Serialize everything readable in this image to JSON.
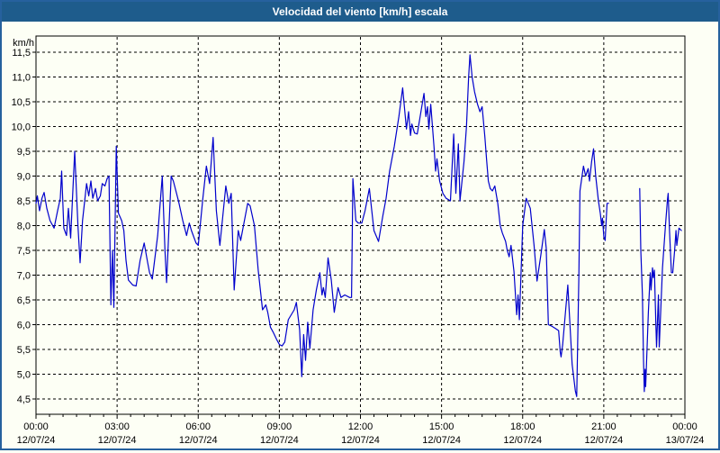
{
  "window": {
    "title": "Velocidad del viento [km/h] escala"
  },
  "colors": {
    "title_bar_bg": "#1E5C8C",
    "title_text": "#FFFFFF",
    "frame_border": "#26619E",
    "background": "#FDFFF5",
    "line": "#0000CC",
    "grid": "#000000",
    "axis": "#000000",
    "label": "#000000"
  },
  "chart_data": {
    "type": "line",
    "title": "Velocidad del viento [km/h] escala",
    "ylabel": "km/h",
    "xlabel": "",
    "ylim": [
      4.5,
      11.5
    ],
    "xlim_hours": [
      0,
      24
    ],
    "grid": "dashed",
    "legend_position": "none",
    "decimal_separator": ",",
    "y_ticks": [
      {
        "value": 11.5,
        "label": "11,5"
      },
      {
        "value": 11.0,
        "label": "11,0"
      },
      {
        "value": 10.5,
        "label": "10,5"
      },
      {
        "value": 10.0,
        "label": "10,0"
      },
      {
        "value": 9.5,
        "label": "9,5"
      },
      {
        "value": 9.0,
        "label": "9,0"
      },
      {
        "value": 8.5,
        "label": "8,5"
      },
      {
        "value": 8.0,
        "label": "8,0"
      },
      {
        "value": 7.5,
        "label": "7,5"
      },
      {
        "value": 7.0,
        "label": "7,0"
      },
      {
        "value": 6.5,
        "label": "6,5"
      },
      {
        "value": 6.0,
        "label": "6,0"
      },
      {
        "value": 5.5,
        "label": "5,5"
      },
      {
        "value": 5.0,
        "label": "5,0"
      },
      {
        "value": 4.5,
        "label": "4,5"
      }
    ],
    "x_ticks": [
      {
        "hour": 0,
        "time": "00:00",
        "date": "12/07/24"
      },
      {
        "hour": 3,
        "time": "03:00",
        "date": "12/07/24"
      },
      {
        "hour": 6,
        "time": "06:00",
        "date": "12/07/24"
      },
      {
        "hour": 9,
        "time": "09:00",
        "date": "12/07/24"
      },
      {
        "hour": 12,
        "time": "12:00",
        "date": "12/07/24"
      },
      {
        "hour": 15,
        "time": "15:00",
        "date": "12/07/24"
      },
      {
        "hour": 18,
        "time": "18:00",
        "date": "12/07/24"
      },
      {
        "hour": 21,
        "time": "21:00",
        "date": "12/07/24"
      },
      {
        "hour": 24,
        "time": "00:00",
        "date": "13/07/24"
      }
    ],
    "data_gap_hours": [
      21.2,
      22.33
    ],
    "series": [
      {
        "name": "Velocidad del viento [km/h]",
        "points": [
          [
            0.0,
            8.45
          ],
          [
            0.05,
            8.6
          ],
          [
            0.13,
            8.3
          ],
          [
            0.22,
            8.55
          ],
          [
            0.3,
            8.67
          ],
          [
            0.4,
            8.35
          ],
          [
            0.52,
            8.1
          ],
          [
            0.67,
            7.95
          ],
          [
            0.8,
            8.3
          ],
          [
            0.9,
            8.55
          ],
          [
            0.95,
            9.1
          ],
          [
            1.03,
            7.95
          ],
          [
            1.13,
            7.8
          ],
          [
            1.2,
            8.35
          ],
          [
            1.28,
            7.75
          ],
          [
            1.43,
            9.5
          ],
          [
            1.55,
            8.0
          ],
          [
            1.63,
            7.25
          ],
          [
            1.72,
            8.1
          ],
          [
            1.8,
            8.5
          ],
          [
            1.87,
            8.85
          ],
          [
            1.95,
            8.6
          ],
          [
            2.03,
            8.9
          ],
          [
            2.1,
            8.55
          ],
          [
            2.2,
            8.75
          ],
          [
            2.28,
            8.5
          ],
          [
            2.38,
            8.6
          ],
          [
            2.45,
            8.85
          ],
          [
            2.55,
            8.8
          ],
          [
            2.63,
            8.95
          ],
          [
            2.7,
            9.0
          ],
          [
            2.77,
            6.4
          ],
          [
            2.83,
            7.5
          ],
          [
            2.88,
            6.35
          ],
          [
            2.97,
            9.6
          ],
          [
            3.05,
            8.25
          ],
          [
            3.17,
            8.1
          ],
          [
            3.25,
            7.9
          ],
          [
            3.33,
            7.3
          ],
          [
            3.42,
            6.9
          ],
          [
            3.58,
            6.8
          ],
          [
            3.7,
            6.78
          ],
          [
            3.85,
            7.3
          ],
          [
            4.0,
            7.65
          ],
          [
            4.13,
            7.25
          ],
          [
            4.2,
            7.05
          ],
          [
            4.3,
            6.92
          ],
          [
            4.5,
            7.8
          ],
          [
            4.67,
            9.0
          ],
          [
            4.77,
            7.5
          ],
          [
            4.83,
            6.85
          ],
          [
            5.0,
            9.0
          ],
          [
            5.08,
            8.9
          ],
          [
            5.27,
            8.5
          ],
          [
            5.43,
            8.1
          ],
          [
            5.57,
            7.8
          ],
          [
            5.67,
            8.05
          ],
          [
            5.75,
            7.9
          ],
          [
            5.92,
            7.65
          ],
          [
            6.0,
            7.6
          ],
          [
            6.17,
            8.55
          ],
          [
            6.3,
            9.2
          ],
          [
            6.42,
            8.85
          ],
          [
            6.55,
            9.78
          ],
          [
            6.67,
            8.3
          ],
          [
            6.8,
            7.6
          ],
          [
            7.02,
            8.8
          ],
          [
            7.13,
            8.45
          ],
          [
            7.22,
            8.65
          ],
          [
            7.33,
            6.7
          ],
          [
            7.48,
            7.9
          ],
          [
            7.57,
            7.7
          ],
          [
            7.83,
            8.45
          ],
          [
            7.92,
            8.4
          ],
          [
            8.08,
            8.0
          ],
          [
            8.22,
            7.1
          ],
          [
            8.38,
            6.3
          ],
          [
            8.5,
            6.4
          ],
          [
            8.57,
            6.25
          ],
          [
            8.67,
            5.95
          ],
          [
            8.77,
            5.85
          ],
          [
            8.9,
            5.7
          ],
          [
            9.0,
            5.6
          ],
          [
            9.1,
            5.57
          ],
          [
            9.2,
            5.65
          ],
          [
            9.33,
            6.1
          ],
          [
            9.55,
            6.3
          ],
          [
            9.63,
            6.45
          ],
          [
            9.75,
            5.9
          ],
          [
            9.83,
            4.95
          ],
          [
            9.9,
            5.8
          ],
          [
            9.97,
            5.28
          ],
          [
            10.05,
            6.05
          ],
          [
            10.13,
            5.52
          ],
          [
            10.25,
            6.3
          ],
          [
            10.37,
            6.7
          ],
          [
            10.5,
            7.05
          ],
          [
            10.58,
            6.6
          ],
          [
            10.63,
            6.75
          ],
          [
            10.7,
            6.55
          ],
          [
            10.8,
            7.35
          ],
          [
            10.92,
            6.9
          ],
          [
            11.03,
            6.25
          ],
          [
            11.17,
            6.75
          ],
          [
            11.28,
            6.55
          ],
          [
            11.42,
            6.6
          ],
          [
            11.6,
            6.55
          ],
          [
            11.67,
            6.55
          ],
          [
            11.72,
            8.95
          ],
          [
            11.83,
            8.1
          ],
          [
            11.92,
            8.05
          ],
          [
            12.05,
            8.05
          ],
          [
            12.17,
            8.3
          ],
          [
            12.33,
            8.75
          ],
          [
            12.5,
            7.9
          ],
          [
            12.67,
            7.68
          ],
          [
            12.83,
            8.2
          ],
          [
            12.95,
            8.55
          ],
          [
            13.08,
            9.1
          ],
          [
            13.25,
            9.6
          ],
          [
            13.42,
            10.2
          ],
          [
            13.56,
            10.78
          ],
          [
            13.7,
            9.95
          ],
          [
            13.78,
            10.3
          ],
          [
            13.85,
            9.82
          ],
          [
            13.9,
            10.05
          ],
          [
            14.0,
            9.87
          ],
          [
            14.1,
            9.85
          ],
          [
            14.35,
            10.67
          ],
          [
            14.42,
            10.2
          ],
          [
            14.48,
            10.4
          ],
          [
            14.53,
            9.95
          ],
          [
            14.6,
            10.45
          ],
          [
            14.72,
            9.6
          ],
          [
            14.78,
            9.1
          ],
          [
            14.83,
            9.35
          ],
          [
            14.93,
            8.9
          ],
          [
            15.05,
            8.65
          ],
          [
            15.17,
            8.55
          ],
          [
            15.33,
            8.5
          ],
          [
            15.45,
            9.85
          ],
          [
            15.53,
            8.65
          ],
          [
            15.62,
            9.65
          ],
          [
            15.68,
            8.5
          ],
          [
            15.83,
            9.3
          ],
          [
            15.92,
            10.0
          ],
          [
            16.0,
            11.0
          ],
          [
            16.05,
            11.45
          ],
          [
            16.13,
            11.0
          ],
          [
            16.22,
            10.7
          ],
          [
            16.33,
            10.45
          ],
          [
            16.42,
            10.3
          ],
          [
            16.5,
            10.4
          ],
          [
            16.6,
            9.8
          ],
          [
            16.67,
            9.3
          ],
          [
            16.73,
            8.9
          ],
          [
            16.8,
            8.75
          ],
          [
            16.88,
            8.7
          ],
          [
            16.97,
            8.8
          ],
          [
            17.08,
            8.45
          ],
          [
            17.17,
            8.0
          ],
          [
            17.25,
            7.85
          ],
          [
            17.37,
            7.68
          ],
          [
            17.43,
            7.5
          ],
          [
            17.5,
            7.37
          ],
          [
            17.57,
            7.6
          ],
          [
            17.68,
            7.07
          ],
          [
            17.78,
            6.2
          ],
          [
            17.83,
            6.6
          ],
          [
            17.88,
            6.1
          ],
          [
            18.0,
            8.0
          ],
          [
            18.13,
            8.55
          ],
          [
            18.28,
            8.35
          ],
          [
            18.42,
            7.6
          ],
          [
            18.53,
            6.88
          ],
          [
            18.67,
            7.4
          ],
          [
            18.8,
            7.92
          ],
          [
            18.87,
            7.55
          ],
          [
            18.95,
            6.0
          ],
          [
            19.08,
            5.97
          ],
          [
            19.22,
            5.92
          ],
          [
            19.33,
            5.88
          ],
          [
            19.39,
            5.45
          ],
          [
            19.42,
            5.35
          ],
          [
            19.48,
            5.6
          ],
          [
            19.67,
            6.8
          ],
          [
            19.83,
            5.2
          ],
          [
            19.95,
            4.66
          ],
          [
            20.0,
            4.55
          ],
          [
            20.08,
            7.0
          ],
          [
            20.12,
            8.7
          ],
          [
            20.25,
            9.2
          ],
          [
            20.33,
            9.0
          ],
          [
            20.42,
            9.15
          ],
          [
            20.47,
            8.9
          ],
          [
            20.55,
            9.3
          ],
          [
            20.62,
            9.55
          ],
          [
            20.7,
            9.0
          ],
          [
            20.8,
            8.5
          ],
          [
            20.87,
            8.25
          ],
          [
            20.92,
            8.0
          ],
          [
            20.95,
            8.15
          ],
          [
            21.0,
            7.78
          ],
          [
            21.05,
            7.7
          ],
          [
            21.12,
            8.45
          ],
          [
            21.18,
            8.45
          ],
          [
            21.7,
            null
          ],
          [
            22.33,
            8.75
          ],
          [
            22.37,
            7.5
          ],
          [
            22.43,
            6.6
          ],
          [
            22.47,
            5.3
          ],
          [
            22.5,
            4.65
          ],
          [
            22.53,
            5.1
          ],
          [
            22.55,
            4.75
          ],
          [
            22.65,
            6.25
          ],
          [
            22.72,
            7.05
          ],
          [
            22.75,
            6.7
          ],
          [
            22.8,
            7.15
          ],
          [
            22.83,
            6.95
          ],
          [
            22.87,
            7.1
          ],
          [
            22.92,
            6.1
          ],
          [
            22.95,
            5.55
          ],
          [
            23.02,
            6.6
          ],
          [
            23.05,
            5.55
          ],
          [
            23.17,
            7.15
          ],
          [
            23.28,
            8.0
          ],
          [
            23.35,
            8.5
          ],
          [
            23.38,
            8.65
          ],
          [
            23.43,
            7.9
          ],
          [
            23.5,
            7.05
          ],
          [
            23.55,
            7.05
          ],
          [
            23.62,
            7.5
          ],
          [
            23.67,
            7.9
          ],
          [
            23.7,
            7.6
          ],
          [
            23.78,
            7.95
          ],
          [
            23.87,
            7.9
          ]
        ]
      }
    ]
  }
}
